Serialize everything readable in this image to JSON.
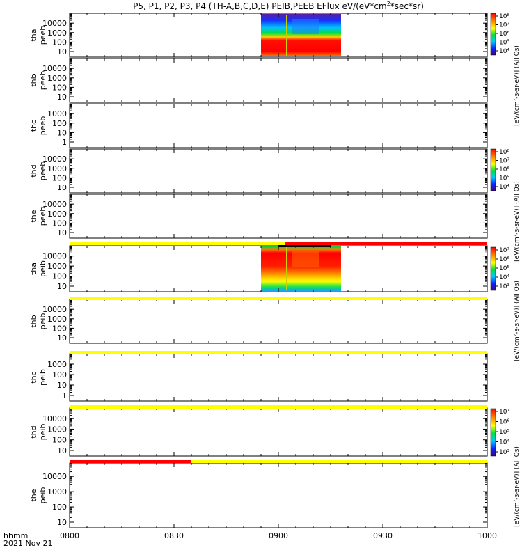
{
  "title": "P5, P1, P2, P3, P4 (TH-A,B,C,D,E) PEIB,PEEB EFlux eV/(eV*cm",
  "title_sup": "2",
  "title_tail": "*sec*sr)",
  "footer": {
    "axis_label": "hhmm",
    "date": "2021 Nov 21"
  },
  "chart_data": {
    "type": "heatmap",
    "x_range": [
      "0800",
      "1000"
    ],
    "x_ticks": [
      "0800",
      "0830",
      "0900",
      "0930",
      "1000"
    ],
    "panels": [
      {
        "label": [
          "tha",
          "peeb"
        ],
        "y_ticks": [
          "10",
          "100",
          "1000",
          "10000"
        ],
        "scale": "log"
      },
      {
        "label": [
          "thb",
          "peeb"
        ],
        "y_ticks": [
          "10",
          "100",
          "1000",
          "10000"
        ],
        "scale": "log"
      },
      {
        "label": [
          "thc",
          "peeb"
        ],
        "y_ticks": [
          "1",
          "10",
          "100",
          "1000"
        ],
        "scale": "log"
      },
      {
        "label": [
          "thd",
          "peeb"
        ],
        "y_ticks": [
          "10",
          "100",
          "1000",
          "10000"
        ],
        "scale": "log"
      },
      {
        "label": [
          "the",
          "peeb"
        ],
        "y_ticks": [
          "10",
          "100",
          "1000",
          "10000"
        ],
        "scale": "log"
      },
      {
        "label": [
          "tha",
          "peib"
        ],
        "y_ticks": [
          "10",
          "100",
          "1000",
          "10000"
        ],
        "scale": "log"
      },
      {
        "label": [
          "thb",
          "peib"
        ],
        "y_ticks": [
          "10",
          "100",
          "1000",
          "10000"
        ],
        "scale": "log"
      },
      {
        "label": [
          "thc",
          "peib"
        ],
        "y_ticks": [
          "1",
          "10",
          "100",
          "1000"
        ],
        "scale": "log"
      },
      {
        "label": [
          "thd",
          "peib"
        ],
        "y_ticks": [
          "10",
          "100",
          "1000",
          "10000"
        ],
        "scale": "log"
      },
      {
        "label": [
          "the",
          "peib"
        ],
        "y_ticks": [
          "10",
          "100",
          "1000",
          "10000"
        ],
        "scale": "log"
      }
    ],
    "spectrogram_time_range": [
      "0855",
      "0918"
    ],
    "colorbars": [
      {
        "ticks": [
          "10⁴",
          "10⁵",
          "10⁶",
          "10⁷",
          "10⁸"
        ],
        "label": "[eV/(cm²-s-sr-eV)] (All Qs)"
      },
      {
        "ticks": [
          "10⁴",
          "10⁵",
          "10⁶",
          "10⁷",
          "10⁸"
        ],
        "label": "[eV/(cm²-s-sr-eV)] (All Qs)"
      },
      {
        "ticks": [
          "10³",
          "10⁴",
          "10⁵",
          "10⁶",
          "10⁷"
        ],
        "label": "[eV/(cm²-s-sr-eV)] (All Qs)"
      },
      {
        "ticks": [
          "10³",
          "10⁴",
          "10⁵",
          "10⁶",
          "10⁷"
        ],
        "label": "[eV/(cm²-s-sr-eV)] (All Qs)"
      }
    ],
    "mode_bars": [
      {
        "segments": [
          {
            "from": "0800",
            "to": "0902",
            "color": "#ffff00"
          },
          {
            "from": "0902",
            "to": "1000",
            "color": "#ff0000"
          }
        ]
      },
      {
        "segments": [
          {
            "from": "0800",
            "to": "1000",
            "color": "#ffff00"
          }
        ]
      },
      {
        "segments": [
          {
            "from": "0800",
            "to": "1000",
            "color": "#ffff00"
          }
        ]
      },
      {
        "segments": [
          {
            "from": "0800",
            "to": "1000",
            "color": "#ffff00"
          }
        ]
      },
      {
        "segments": [
          {
            "from": "0800",
            "to": "0835",
            "color": "#ff0000"
          },
          {
            "from": "0835",
            "to": "1000",
            "color": "#ffff00"
          }
        ]
      }
    ]
  }
}
